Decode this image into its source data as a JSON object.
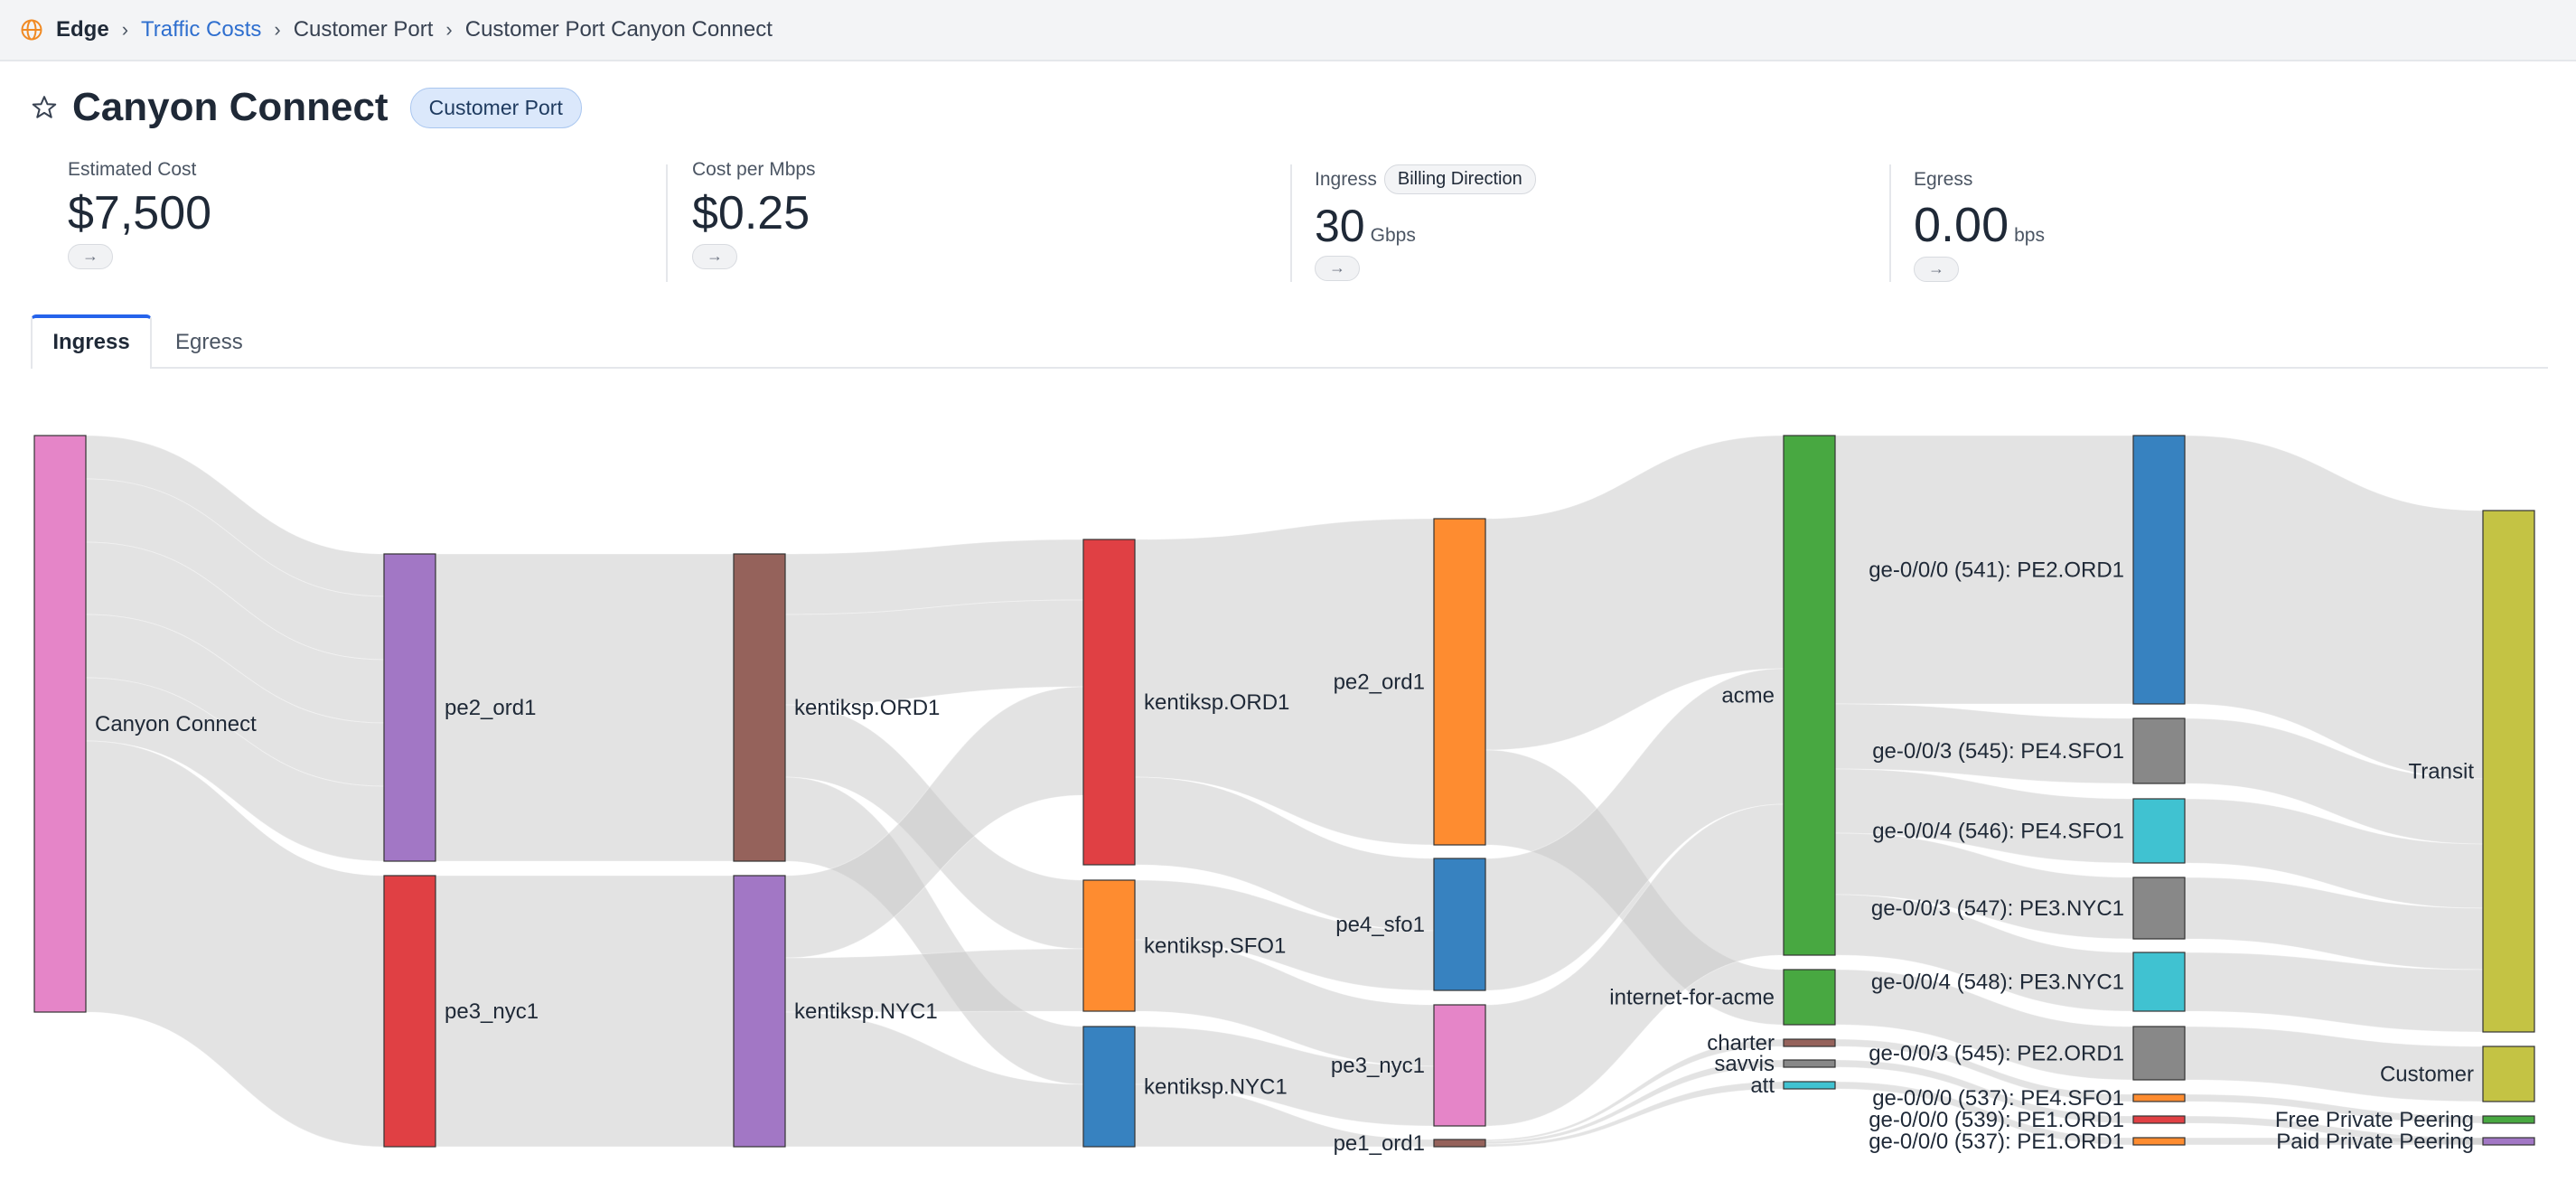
{
  "breadcrumb": {
    "root": "Edge",
    "items": [
      "Traffic Costs",
      "Customer Port",
      "Customer Port Canyon Connect"
    ],
    "icon": "globe-icon"
  },
  "header": {
    "title": "Canyon Connect",
    "badge": "Customer Port",
    "star_icon": "star-outline-icon"
  },
  "metrics": {
    "estimated_cost": {
      "label": "Estimated Cost",
      "value": "$7,500",
      "arrow": "→"
    },
    "cost_per_mbps": {
      "label": "Cost per Mbps",
      "value": "$0.25",
      "arrow": "→"
    },
    "ingress": {
      "label": "Ingress",
      "direction_badge": "Billing Direction",
      "value": "30",
      "unit": "Gbps",
      "arrow": "→"
    },
    "egress": {
      "label": "Egress",
      "value": "0.00",
      "unit": "bps",
      "arrow": "→"
    }
  },
  "tabs": [
    {
      "label": "Ingress",
      "active": true
    },
    {
      "label": "Egress",
      "active": false
    }
  ],
  "colors": {
    "accent": "#2563eb",
    "link": "#2f6fcf",
    "flow": "#c8c8c8"
  },
  "sankey": {
    "nodes": [
      {
        "id": "cc",
        "label": "Canyon Connect",
        "color": "#e585c8"
      },
      {
        "id": "pe2o_a",
        "label": "pe2_ord1",
        "color": "#a277c5"
      },
      {
        "id": "pe3n_a",
        "label": "pe3_nyc1",
        "color": "#e04044"
      },
      {
        "id": "ko_b",
        "label": "kentiksp.ORD1",
        "color": "#95625b"
      },
      {
        "id": "kn_b",
        "label": "kentiksp.NYC1",
        "color": "#a277c5"
      },
      {
        "id": "ko_c",
        "label": "kentiksp.ORD1",
        "color": "#e04044"
      },
      {
        "id": "ks_c",
        "label": "kentiksp.SFO1",
        "color": "#fe8c30"
      },
      {
        "id": "kn_c",
        "label": "kentiksp.NYC1",
        "color": "#3782c0"
      },
      {
        "id": "pe2o_d",
        "label": "pe2_ord1",
        "color": "#fe8c30"
      },
      {
        "id": "pe4s_d",
        "label": "pe4_sfo1",
        "color": "#3782c0"
      },
      {
        "id": "pe3n_d",
        "label": "pe3_nyc1",
        "color": "#e585c8"
      },
      {
        "id": "pe1o_d",
        "label": "pe1_ord1",
        "color": "#95625b"
      },
      {
        "id": "acme",
        "label": "acme",
        "color": "#48a841"
      },
      {
        "id": "ifa",
        "label": "internet-for-acme",
        "color": "#48a841"
      },
      {
        "id": "charter",
        "label": "charter",
        "color": "#95625b"
      },
      {
        "id": "savvis",
        "label": "savvis",
        "color": "#888888"
      },
      {
        "id": "att",
        "label": "att",
        "color": "#40c2d1"
      },
      {
        "id": "i1",
        "label": "ge-0/0/0 (541): PE2.ORD1",
        "color": "#3782c0"
      },
      {
        "id": "i2",
        "label": "ge-0/0/3 (545): PE4.SFO1",
        "color": "#888888"
      },
      {
        "id": "i3",
        "label": "ge-0/0/4 (546): PE4.SFO1",
        "color": "#40c2d1"
      },
      {
        "id": "i4",
        "label": "ge-0/0/3 (547): PE3.NYC1",
        "color": "#888888"
      },
      {
        "id": "i5",
        "label": "ge-0/0/4 (548): PE3.NYC1",
        "color": "#40c2d1"
      },
      {
        "id": "i6",
        "label": "ge-0/0/3 (545): PE2.ORD1",
        "color": "#888888"
      },
      {
        "id": "i7",
        "label": "ge-0/0/0 (537): PE4.SFO1",
        "color": "#fe8c30"
      },
      {
        "id": "i8",
        "label": "ge-0/0/0 (539): PE1.ORD1",
        "color": "#e04044"
      },
      {
        "id": "i9",
        "label": "ge-0/0/0 (537): PE1.ORD1",
        "color": "#fe8c30"
      },
      {
        "id": "transit",
        "label": "Transit",
        "color": "#c4c344"
      },
      {
        "id": "customer",
        "label": "Customer",
        "color": "#c4c344"
      },
      {
        "id": "fpp",
        "label": "Free Private Peering",
        "color": "#48a841"
      },
      {
        "id": "ppp",
        "label": "Paid Private Peering",
        "color": "#a277c5"
      }
    ]
  }
}
